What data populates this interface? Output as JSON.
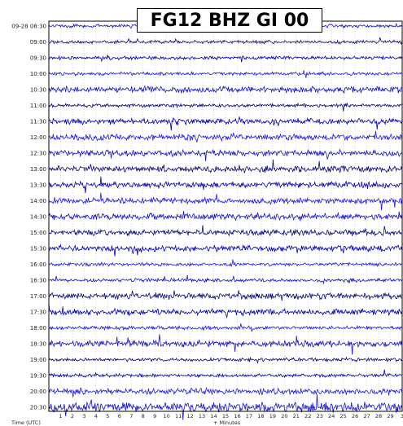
{
  "chart_data": {
    "type": "line",
    "title": "FG12 BHZ GI 00",
    "xlabel": "+ Minutes",
    "xlabel_left": "Time (UTC)",
    "xlim": [
      0,
      30
    ],
    "x_ticks": [
      "1",
      "2",
      "3",
      "4",
      "5",
      "6",
      "7",
      "8",
      "9",
      "10",
      "11",
      "12",
      "13",
      "14",
      "15",
      "16",
      "17",
      "18",
      "19",
      "20",
      "21",
      "22",
      "23",
      "24",
      "25",
      "26",
      "27",
      "28",
      "29",
      "3"
    ],
    "rows": [
      {
        "label": "09-28 08:30",
        "color": "#1414c8",
        "level": 1
      },
      {
        "label": "09:00",
        "color": "#0a0a78",
        "level": 1
      },
      {
        "label": "09:30",
        "color": "#0000b4",
        "level": 1
      },
      {
        "label": "10:00",
        "color": "#1e1ee6",
        "level": 1
      },
      {
        "label": "10:30",
        "color": "#1414c8",
        "level": 2
      },
      {
        "label": "11:00",
        "color": "#0a0a78",
        "level": 1
      },
      {
        "label": "11:30",
        "color": "#0000b4",
        "level": 2
      },
      {
        "label": "12:00",
        "color": "#1e1ee6",
        "level": 2
      },
      {
        "label": "12:30",
        "color": "#1414c8",
        "level": 2
      },
      {
        "label": "13:00",
        "color": "#0a0a78",
        "level": 2
      },
      {
        "label": "13:30",
        "color": "#0000b4",
        "level": 2
      },
      {
        "label": "14:00",
        "color": "#1e1ee6",
        "level": 2
      },
      {
        "label": "14:30",
        "color": "#1414c8",
        "level": 2
      },
      {
        "label": "15:00",
        "color": "#0a0a78",
        "level": 2
      },
      {
        "label": "15:30",
        "color": "#0000b4",
        "level": 2
      },
      {
        "label": "16:00",
        "color": "#1e1ee6",
        "level": 1
      },
      {
        "label": "16:30",
        "color": "#1414c8",
        "level": 1
      },
      {
        "label": "17:00",
        "color": "#0a0a78",
        "level": 2
      },
      {
        "label": "17:30",
        "color": "#0000b4",
        "level": 2
      },
      {
        "label": "18:00",
        "color": "#1e1ee6",
        "level": 1
      },
      {
        "label": "18:30",
        "color": "#1414c8",
        "level": 2
      },
      {
        "label": "19:00",
        "color": "#0a0a78",
        "level": 1
      },
      {
        "label": "19:30",
        "color": "#0000b4",
        "level": 1
      },
      {
        "label": "20:00",
        "color": "#1e1ee6",
        "level": 2
      },
      {
        "label": "20:30",
        "color": "#1414c8",
        "level": 3
      }
    ],
    "grid": true
  }
}
